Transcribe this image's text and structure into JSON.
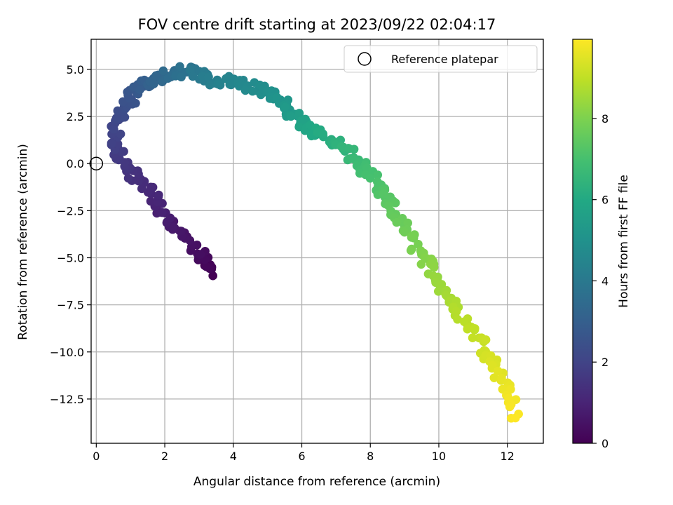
{
  "chart_data": {
    "type": "scatter",
    "title": "FOV centre drift starting at 2023/09/22 02:04:17",
    "xlabel": "Angular distance from reference (arcmin)",
    "ylabel": "Rotation from reference (arcmin)",
    "xlim": [
      -0.15,
      13.05
    ],
    "ylim": [
      -14.85,
      6.6
    ],
    "xticks": [
      0,
      2,
      4,
      6,
      8,
      10,
      12
    ],
    "yticks": [
      -12.5,
      -10.0,
      -7.5,
      -5.0,
      -2.5,
      0.0,
      2.5,
      5.0
    ],
    "ytick_labels": [
      "−12.5",
      "−10.0",
      "−7.5",
      "−5.0",
      "−2.5",
      "0.0",
      "2.5",
      "5.0"
    ],
    "grid": true,
    "legend": {
      "position": "top-right",
      "entries": [
        "Reference platepar"
      ]
    },
    "reference_point": {
      "x": 0.0,
      "y": 0.0
    },
    "colorbar": {
      "label": "Hours from first FF file",
      "colormap": "viridis",
      "range": [
        0,
        9.95
      ],
      "ticks": [
        0,
        2,
        4,
        6,
        8
      ]
    },
    "trajectory_waypoints": [
      {
        "h": 0.0,
        "x": 3.35,
        "y": -5.85
      },
      {
        "h": 0.3,
        "x": 3.05,
        "y": -4.9
      },
      {
        "h": 0.6,
        "x": 2.4,
        "y": -3.5
      },
      {
        "h": 0.9,
        "x": 1.9,
        "y": -2.6
      },
      {
        "h": 1.2,
        "x": 1.55,
        "y": -1.3
      },
      {
        "h": 1.45,
        "x": 1.0,
        "y": -0.5
      },
      {
        "h": 1.7,
        "x": 0.65,
        "y": 0.4
      },
      {
        "h": 2.0,
        "x": 0.55,
        "y": 1.6
      },
      {
        "h": 2.3,
        "x": 0.75,
        "y": 2.8
      },
      {
        "h": 2.7,
        "x": 1.1,
        "y": 3.8
      },
      {
        "h": 3.1,
        "x": 1.6,
        "y": 4.4
      },
      {
        "h": 3.5,
        "x": 2.2,
        "y": 4.7
      },
      {
        "h": 3.9,
        "x": 2.8,
        "y": 5.0
      },
      {
        "h": 4.2,
        "x": 3.3,
        "y": 4.4
      },
      {
        "h": 4.5,
        "x": 4.1,
        "y": 4.4
      },
      {
        "h": 4.9,
        "x": 5.0,
        "y": 3.8
      },
      {
        "h": 5.3,
        "x": 5.6,
        "y": 2.9
      },
      {
        "h": 5.8,
        "x": 6.1,
        "y": 2.0
      },
      {
        "h": 6.3,
        "x": 7.0,
        "y": 1.1
      },
      {
        "h": 6.8,
        "x": 7.7,
        "y": 0.0
      },
      {
        "h": 7.2,
        "x": 8.3,
        "y": -1.5
      },
      {
        "h": 7.6,
        "x": 8.8,
        "y": -2.9
      },
      {
        "h": 8.0,
        "x": 9.4,
        "y": -4.6
      },
      {
        "h": 8.4,
        "x": 10.0,
        "y": -6.2
      },
      {
        "h": 8.8,
        "x": 10.6,
        "y": -7.9
      },
      {
        "h": 9.1,
        "x": 11.2,
        "y": -9.3
      },
      {
        "h": 9.4,
        "x": 11.6,
        "y": -10.5
      },
      {
        "h": 9.7,
        "x": 12.0,
        "y": -12.0
      },
      {
        "h": 9.95,
        "x": 12.25,
        "y": -13.4
      }
    ],
    "point_count": 420
  }
}
